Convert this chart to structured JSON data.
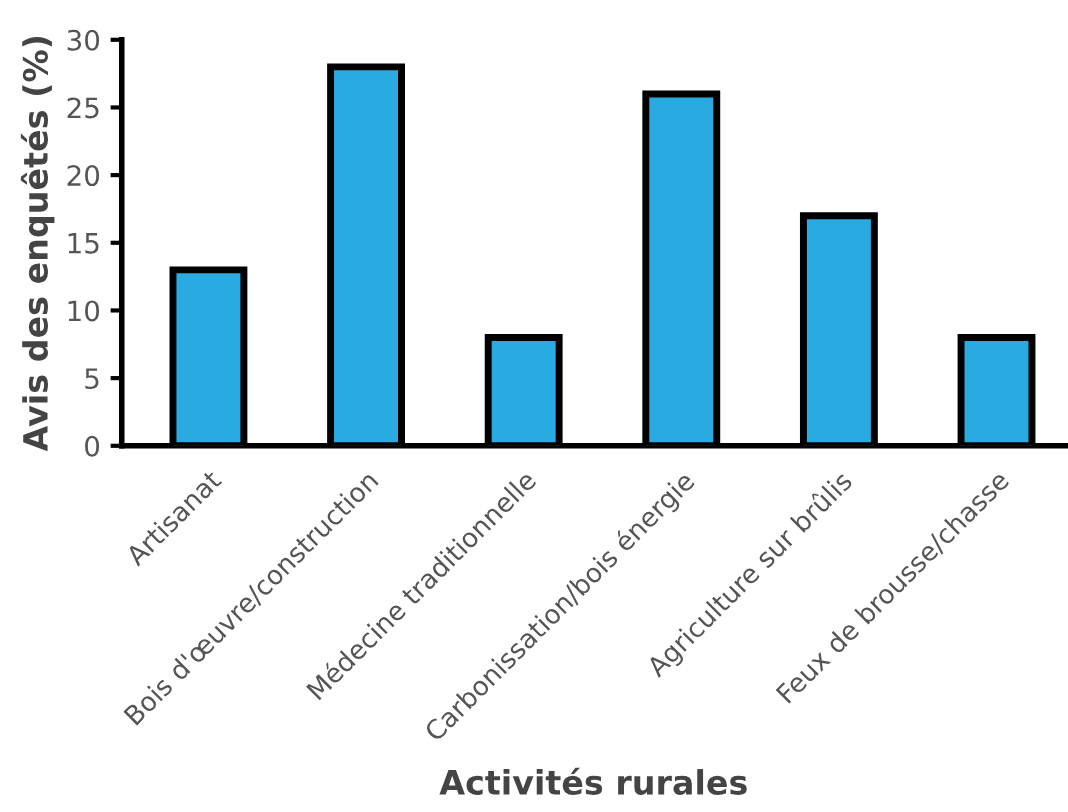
{
  "chart_data": {
    "type": "bar",
    "xlabel": "Activités rurales",
    "ylabel": "Avis des enquêtés (%)",
    "categories": [
      "Artisanat",
      "Bois d'œuvre/construction",
      "Médecine traditionnelle",
      "Carbonissation/bois énergie",
      "Agriculture sur brûlis",
      "Feux de brousse/chasse"
    ],
    "values": [
      13,
      28,
      8,
      26,
      17,
      8
    ],
    "color": "#29abe2",
    "ylim": [
      0,
      30
    ],
    "yticks": [
      0,
      5,
      10,
      15,
      20,
      25,
      30
    ],
    "grid": false,
    "legend": false
  }
}
